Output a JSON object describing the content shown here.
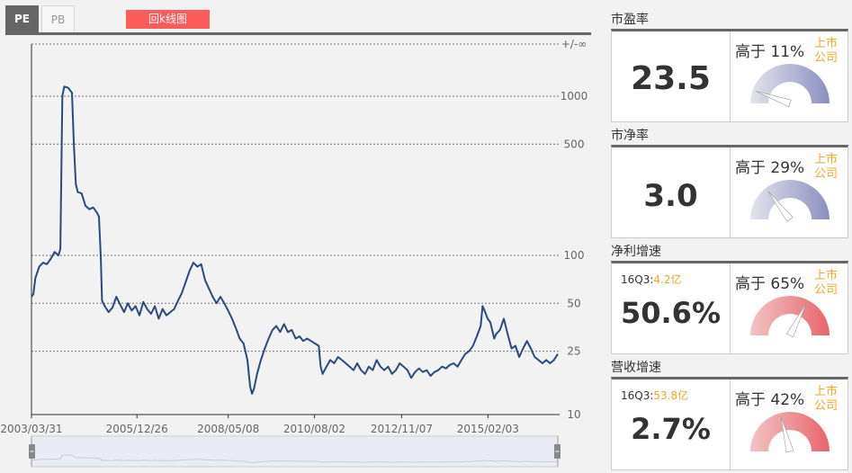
{
  "tabs": [
    {
      "label": "PE",
      "active": true
    },
    {
      "label": "PB",
      "active": false
    }
  ],
  "kline_button": "回k线图",
  "chart_data": {
    "type": "line",
    "series_name": "PE",
    "y_scale": "log",
    "y_ticks": [
      "+/-∞",
      "1000",
      "500",
      "100",
      "50",
      "25",
      "10"
    ],
    "x_ticks": [
      "2003/03/31",
      "2005/12/26",
      "2008/05/08",
      "2010/08/02",
      "2012/11/07",
      "2015/02/03"
    ],
    "x_range": [
      2003.25,
      2016.9
    ],
    "line_color": "#2a4a7e",
    "points": [
      [
        2003.25,
        55
      ],
      [
        2003.3,
        57
      ],
      [
        2003.35,
        72
      ],
      [
        2003.45,
        85
      ],
      [
        2003.55,
        90
      ],
      [
        2003.65,
        88
      ],
      [
        2003.75,
        95
      ],
      [
        2003.85,
        105
      ],
      [
        2003.95,
        100
      ],
      [
        2004.0,
        110
      ],
      [
        2004.05,
        1000
      ],
      [
        2004.1,
        1150
      ],
      [
        2004.2,
        1130
      ],
      [
        2004.3,
        1050
      ],
      [
        2004.35,
        500
      ],
      [
        2004.4,
        280
      ],
      [
        2004.45,
        250
      ],
      [
        2004.55,
        245
      ],
      [
        2004.65,
        205
      ],
      [
        2004.75,
        195
      ],
      [
        2004.85,
        200
      ],
      [
        2004.95,
        185
      ],
      [
        2005.0,
        175
      ],
      [
        2005.05,
        95
      ],
      [
        2005.08,
        52
      ],
      [
        2005.15,
        48
      ],
      [
        2005.25,
        44
      ],
      [
        2005.35,
        47
      ],
      [
        2005.45,
        55
      ],
      [
        2005.55,
        49
      ],
      [
        2005.65,
        44
      ],
      [
        2005.75,
        50
      ],
      [
        2005.85,
        45
      ],
      [
        2005.95,
        48
      ],
      [
        2006.05,
        42
      ],
      [
        2006.15,
        51
      ],
      [
        2006.25,
        46
      ],
      [
        2006.35,
        43
      ],
      [
        2006.45,
        48
      ],
      [
        2006.55,
        40
      ],
      [
        2006.65,
        46
      ],
      [
        2006.75,
        42
      ],
      [
        2006.85,
        44
      ],
      [
        2006.95,
        46
      ],
      [
        2007.05,
        52
      ],
      [
        2007.15,
        58
      ],
      [
        2007.25,
        68
      ],
      [
        2007.35,
        80
      ],
      [
        2007.45,
        90
      ],
      [
        2007.55,
        85
      ],
      [
        2007.65,
        88
      ],
      [
        2007.75,
        70
      ],
      [
        2007.85,
        62
      ],
      [
        2007.95,
        55
      ],
      [
        2008.05,
        50
      ],
      [
        2008.15,
        55
      ],
      [
        2008.25,
        50
      ],
      [
        2008.35,
        45
      ],
      [
        2008.45,
        40
      ],
      [
        2008.55,
        35
      ],
      [
        2008.65,
        30
      ],
      [
        2008.75,
        28
      ],
      [
        2008.85,
        22
      ],
      [
        2008.92,
        15
      ],
      [
        2008.97,
        13.5
      ],
      [
        2009.02,
        14.5
      ],
      [
        2009.1,
        18
      ],
      [
        2009.2,
        22
      ],
      [
        2009.3,
        26
      ],
      [
        2009.4,
        30
      ],
      [
        2009.5,
        34
      ],
      [
        2009.6,
        36
      ],
      [
        2009.7,
        33
      ],
      [
        2009.8,
        37
      ],
      [
        2009.9,
        33
      ],
      [
        2010.0,
        34
      ],
      [
        2010.1,
        30
      ],
      [
        2010.2,
        31
      ],
      [
        2010.3,
        29
      ],
      [
        2010.4,
        30
      ],
      [
        2010.5,
        29
      ],
      [
        2010.6,
        28
      ],
      [
        2010.7,
        27
      ],
      [
        2010.75,
        20
      ],
      [
        2010.8,
        18
      ],
      [
        2010.9,
        20
      ],
      [
        2011.0,
        22
      ],
      [
        2011.1,
        21
      ],
      [
        2011.2,
        23
      ],
      [
        2011.3,
        22
      ],
      [
        2011.4,
        21
      ],
      [
        2011.5,
        20
      ],
      [
        2011.6,
        19
      ],
      [
        2011.7,
        21
      ],
      [
        2011.8,
        19
      ],
      [
        2011.9,
        18
      ],
      [
        2012.0,
        20
      ],
      [
        2012.1,
        19
      ],
      [
        2012.2,
        22
      ],
      [
        2012.3,
        20
      ],
      [
        2012.4,
        19
      ],
      [
        2012.5,
        20
      ],
      [
        2012.6,
        18
      ],
      [
        2012.7,
        19
      ],
      [
        2012.8,
        21
      ],
      [
        2012.9,
        20
      ],
      [
        2013.0,
        19
      ],
      [
        2013.1,
        17
      ],
      [
        2013.2,
        18.5
      ],
      [
        2013.3,
        19.5
      ],
      [
        2013.4,
        18.5
      ],
      [
        2013.5,
        19
      ],
      [
        2013.6,
        17.5
      ],
      [
        2013.7,
        18.5
      ],
      [
        2013.8,
        19
      ],
      [
        2013.9,
        20
      ],
      [
        2014.0,
        19.5
      ],
      [
        2014.1,
        20.5
      ],
      [
        2014.2,
        21
      ],
      [
        2014.3,
        20
      ],
      [
        2014.4,
        22
      ],
      [
        2014.5,
        24
      ],
      [
        2014.6,
        25
      ],
      [
        2014.7,
        27
      ],
      [
        2014.8,
        31
      ],
      [
        2014.9,
        36
      ],
      [
        2014.95,
        48
      ],
      [
        2015.0,
        45
      ],
      [
        2015.08,
        40
      ],
      [
        2015.15,
        38
      ],
      [
        2015.25,
        30
      ],
      [
        2015.3,
        32
      ],
      [
        2015.4,
        34
      ],
      [
        2015.5,
        40
      ],
      [
        2015.6,
        32
      ],
      [
        2015.7,
        26
      ],
      [
        2015.8,
        27
      ],
      [
        2015.9,
        23
      ],
      [
        2016.0,
        26
      ],
      [
        2016.1,
        29
      ],
      [
        2016.2,
        26
      ],
      [
        2016.3,
        23
      ],
      [
        2016.4,
        22
      ],
      [
        2016.5,
        21
      ],
      [
        2016.6,
        22
      ],
      [
        2016.7,
        21
      ],
      [
        2016.8,
        22
      ],
      [
        2016.9,
        24
      ]
    ]
  },
  "metrics": [
    {
      "title": "市盈率",
      "value": "23.5",
      "sub_prefix": "",
      "sub_amount": "",
      "percent_text": "高于 11%",
      "percent": 11,
      "listed": "上市公司",
      "gauge": "purple"
    },
    {
      "title": "市净率",
      "value": "3.0",
      "sub_prefix": "",
      "sub_amount": "",
      "percent_text": "高于 29%",
      "percent": 29,
      "listed": "上市公司",
      "gauge": "purple"
    },
    {
      "title": "净利增速",
      "value": "50.6%",
      "sub_prefix": "16Q3:",
      "sub_amount": "4.2亿",
      "percent_text": "高于 65%",
      "percent": 65,
      "listed": "上市公司",
      "gauge": "red"
    },
    {
      "title": "营收增速",
      "value": "2.7%",
      "sub_prefix": "16Q3:",
      "sub_amount": "53.8亿",
      "percent_text": "高于 42%",
      "percent": 42,
      "listed": "上市公司",
      "gauge": "red"
    }
  ],
  "colors": {
    "accent_red": "#fe5c5b",
    "orange": "#f5a623",
    "gauge_purple": "#8a8fc0",
    "gauge_red": "#e8656a"
  }
}
